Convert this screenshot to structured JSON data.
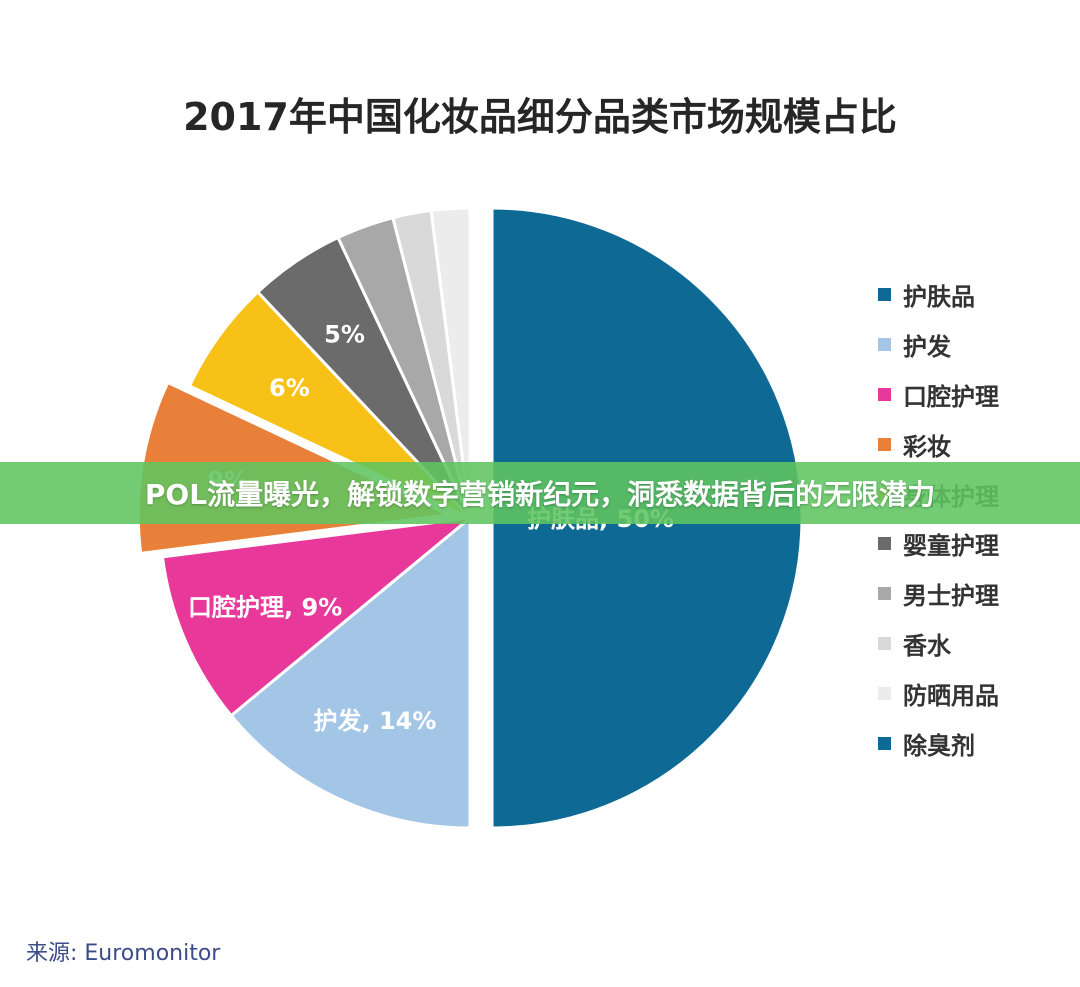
{
  "banner": {
    "text": "POL流量曝光，解锁数字营销新纪元，洞悉数据背后的无限潜力"
  },
  "source": "来源:  Euromonitor",
  "chart_data": {
    "type": "pie",
    "title": "2017年中国化妆品细分品类市场规模占比",
    "legend_position": "right",
    "slices": [
      {
        "name": "护肤品",
        "value": 50,
        "color": "#0e6a94",
        "label": "护肤品, 50%",
        "exploded": true
      },
      {
        "name": "护发",
        "value": 14,
        "color": "#a3c5e6",
        "label": "护发, 14%",
        "exploded": false
      },
      {
        "name": "口腔护理",
        "value": 9,
        "color": "#e8399a",
        "label": "口腔护理, 9%",
        "exploded": false
      },
      {
        "name": "彩妆",
        "value": 9,
        "color": "#e8803a",
        "label": "9%",
        "exploded": true
      },
      {
        "name": "身体护理",
        "value": 6,
        "color": "#f7c118",
        "label": "6%",
        "exploded": false
      },
      {
        "name": "婴童护理",
        "value": 5,
        "color": "#6b6b6b",
        "label": "5%",
        "exploded": false
      },
      {
        "name": "男士护理",
        "value": 3,
        "color": "#a8a8a8",
        "label": "",
        "exploded": false
      },
      {
        "name": "香水",
        "value": 2,
        "color": "#d9d9d9",
        "label": "",
        "exploded": false
      },
      {
        "name": "防晒用品",
        "value": 2,
        "color": "#ececec",
        "label": "",
        "exploded": false
      },
      {
        "name": "除臭剂",
        "value": 0,
        "color": "#0e6a94",
        "label": "",
        "exploded": false
      }
    ]
  }
}
